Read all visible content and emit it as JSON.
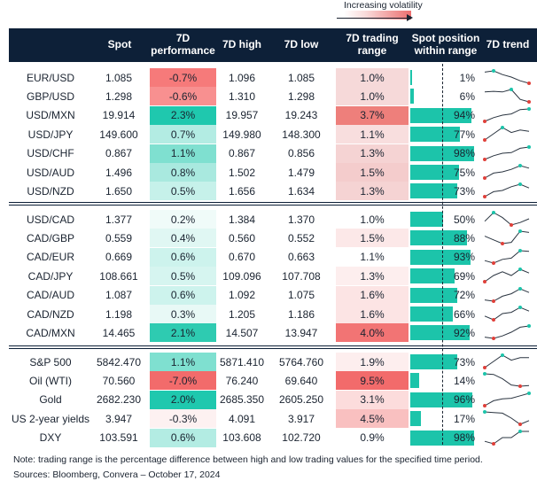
{
  "legend": {
    "title": "Increasing volatility"
  },
  "headers": [
    "",
    "Spot",
    "7D performance",
    "7D high",
    "7D low",
    "7D trading range",
    "Spot position within range",
    "7D trend"
  ],
  "colors": {
    "header_bg": "#0d2038",
    "bar": "#1cc4aa",
    "dot_high": "#1cc4aa",
    "dot_low": "#e0403a"
  },
  "chart_data": {
    "type": "table",
    "groups": [
      [
        {
          "name": "EUR/USD",
          "spot": "1.085",
          "perf": "-0.7%",
          "perf_color": "#f67a7a",
          "high": "1.096",
          "low": "1.085",
          "range": "1.0%",
          "range_color": "#f6d9d9",
          "pos": 1,
          "pos_label": "1%",
          "trend": [
            0.9,
            1,
            0.7,
            0.5,
            0.2,
            0
          ]
        },
        {
          "name": "GBP/USD",
          "spot": "1.298",
          "perf": "-0.6%",
          "perf_color": "#f89090",
          "high": "1.310",
          "low": "1.298",
          "range": "1.0%",
          "range_color": "#f6d9d9",
          "pos": 6,
          "pos_label": "6%",
          "trend": [
            0.8,
            0.85,
            0.8,
            1,
            0.2,
            0
          ]
        },
        {
          "name": "USD/MXN",
          "spot": "19.914",
          "perf": "2.3%",
          "perf_color": "#1fc8ae",
          "high": "19.957",
          "low": "19.243",
          "range": "3.7%",
          "range_color": "#ee7f7b",
          "pos": 94,
          "pos_label": "94%",
          "trend": [
            0,
            0.3,
            0.5,
            0.6,
            0.95,
            1
          ]
        },
        {
          "name": "USD/JPY",
          "spot": "149.600",
          "perf": "0.7%",
          "perf_color": "#b3ece3",
          "high": "149.980",
          "low": "148.300",
          "range": "1.1%",
          "range_color": "#f8dede",
          "pos": 77,
          "pos_label": "77%",
          "trend": [
            0,
            0.5,
            1,
            0.6,
            0.8,
            0.7
          ]
        },
        {
          "name": "USD/CHF",
          "spot": "0.867",
          "perf": "1.1%",
          "perf_color": "#7fe0d0",
          "high": "0.867",
          "low": "0.856",
          "range": "1.3%",
          "range_color": "#f5d3d3",
          "pos": 98,
          "pos_label": "98%",
          "trend": [
            0,
            0.3,
            0.5,
            0.55,
            0.9,
            1
          ]
        },
        {
          "name": "USD/AUD",
          "spot": "1.496",
          "perf": "0.8%",
          "perf_color": "#a9e9df",
          "high": "1.502",
          "low": "1.479",
          "range": "1.5%",
          "range_color": "#f4cccc",
          "pos": 75,
          "pos_label": "75%",
          "trend": [
            0,
            0.4,
            0.5,
            0.7,
            1,
            0.8
          ]
        },
        {
          "name": "USD/NZD",
          "spot": "1.650",
          "perf": "0.5%",
          "perf_color": "#c6f1ea",
          "high": "1.656",
          "low": "1.634",
          "range": "1.3%",
          "range_color": "#f5d3d3",
          "pos": 73,
          "pos_label": "73%",
          "trend": [
            0,
            0.4,
            0.5,
            0.8,
            1,
            0.7
          ]
        }
      ],
      [
        {
          "name": "USD/CAD",
          "spot": "1.377",
          "perf": "0.2%",
          "perf_color": "#f0fbf9",
          "high": "1.384",
          "low": "1.370",
          "range": "1.0%",
          "range_color": "#ffffff",
          "pos": 50,
          "pos_label": "50%",
          "trend": [
            0.3,
            1,
            0.6,
            0,
            0.2,
            0.5
          ]
        },
        {
          "name": "CAD/GBP",
          "spot": "0.559",
          "perf": "0.4%",
          "perf_color": "#e0f7f3",
          "high": "0.560",
          "low": "0.552",
          "range": "1.5%",
          "range_color": "#fce8e8",
          "pos": 88,
          "pos_label": "88%",
          "trend": [
            0.6,
            0.3,
            0,
            0.1,
            1,
            0.9
          ]
        },
        {
          "name": "CAD/EUR",
          "spot": "0.669",
          "perf": "0.6%",
          "perf_color": "#cdf3ed",
          "high": "0.670",
          "low": "0.663",
          "range": "1.1%",
          "range_color": "#ffffff",
          "pos": 93,
          "pos_label": "93%",
          "trend": [
            0.2,
            0,
            0.3,
            0.4,
            1,
            0.95
          ]
        },
        {
          "name": "CAD/JPY",
          "spot": "108.661",
          "perf": "0.5%",
          "perf_color": "#d6f5f0",
          "high": "109.096",
          "low": "107.708",
          "range": "1.3%",
          "range_color": "#fdeeee",
          "pos": 69,
          "pos_label": "69%",
          "trend": [
            0,
            0.5,
            0.8,
            0.5,
            1,
            0.7
          ]
        },
        {
          "name": "CAD/AUD",
          "spot": "1.087",
          "perf": "0.6%",
          "perf_color": "#cdf3ed",
          "high": "1.092",
          "low": "1.075",
          "range": "1.6%",
          "range_color": "#fce4e4",
          "pos": 72,
          "pos_label": "72%",
          "trend": [
            0.1,
            0,
            0.4,
            0.6,
            1,
            0.7
          ]
        },
        {
          "name": "CAD/NZD",
          "spot": "1.198",
          "perf": "0.3%",
          "perf_color": "#e8f9f6",
          "high": "1.205",
          "low": "1.186",
          "range": "1.6%",
          "range_color": "#fce4e4",
          "pos": 66,
          "pos_label": "66%",
          "trend": [
            0.3,
            0,
            0.5,
            0.6,
            1,
            0.7
          ]
        },
        {
          "name": "CAD/MXN",
          "spot": "14.465",
          "perf": "2.1%",
          "perf_color": "#2ecbb1",
          "high": "14.507",
          "low": "13.947",
          "range": "4.0%",
          "range_color": "#f27474",
          "pos": 92,
          "pos_label": "92%",
          "trend": [
            0.1,
            0,
            0.2,
            0.5,
            0.9,
            1
          ]
        }
      ],
      [
        {
          "name": "S&P 500",
          "spot": "5842.470",
          "perf": "1.1%",
          "perf_color": "#7fe0d0",
          "high": "5871.410",
          "low": "5764.760",
          "range": "1.9%",
          "range_color": "#fdeeee",
          "pos": 73,
          "pos_label": "73%",
          "trend": [
            0,
            0.5,
            1,
            0.6,
            0.8,
            0.8
          ]
        },
        {
          "name": "Oil (WTI)",
          "spot": "70.560",
          "perf": "-7.0%",
          "perf_color": "#f26b6b",
          "high": "76.240",
          "low": "69.640",
          "range": "9.5%",
          "range_color": "#f26b6b",
          "pos": 14,
          "pos_label": "14%",
          "trend": [
            1,
            0.95,
            0.6,
            0.1,
            0,
            0.05
          ]
        },
        {
          "name": "Gold",
          "spot": "2682.230",
          "perf": "2.0%",
          "perf_color": "#1fc8ae",
          "high": "2685.350",
          "low": "2605.250",
          "range": "3.1%",
          "range_color": "#fcdcdc",
          "pos": 96,
          "pos_label": "96%",
          "trend": [
            0,
            0.4,
            0.55,
            0.6,
            0.8,
            1
          ]
        },
        {
          "name": "US 2-year yields",
          "spot": "3.947",
          "perf": "-0.3%",
          "perf_color": "#fdf1f1",
          "high": "4.091",
          "low": "3.917",
          "range": "4.5%",
          "range_color": "#f9c0c0",
          "pos": 17,
          "pos_label": "17%",
          "trend": [
            1,
            0.95,
            0.9,
            0.5,
            0,
            0.3
          ]
        },
        {
          "name": "DXY",
          "spot": "103.591",
          "perf": "0.6%",
          "perf_color": "#b3ece3",
          "high": "103.608",
          "low": "102.720",
          "range": "0.9%",
          "range_color": "#ffffff",
          "pos": 98,
          "pos_label": "98%",
          "trend": [
            0.2,
            0,
            0.5,
            0.5,
            1,
            1
          ]
        }
      ]
    ]
  },
  "footer": {
    "note": "Note: trading range is the percentage difference between high and low trading values for the specified time period.",
    "sources": "Sources: Bloomberg, Convera – October 17, 2024"
  }
}
